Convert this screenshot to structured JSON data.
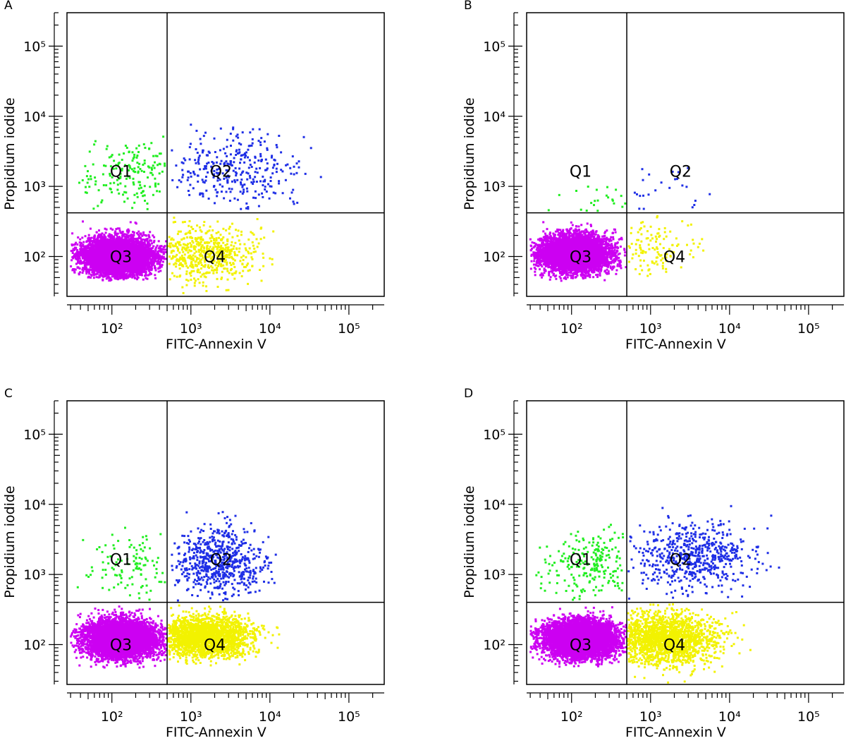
{
  "chart_data": [
    {
      "type": "scatter",
      "panel": "A",
      "xlabel": "FITC-Annexin V",
      "ylabel": "Propidium iodide",
      "x_scale": "log",
      "y_scale": "log",
      "xlim": [
        27,
        280000
      ],
      "ylim": [
        27,
        300000
      ],
      "x_ticks": [
        100,
        1000,
        10000,
        100000
      ],
      "y_ticks": [
        100,
        1000,
        10000,
        100000
      ],
      "gate": {
        "x": 500,
        "y": 420
      },
      "quadrant_labels": [
        "Q1",
        "Q2",
        "Q3",
        "Q4"
      ],
      "series": [
        {
          "name": "Q1",
          "color": "#22ee22",
          "count": 170,
          "x_center": 160,
          "y_center": 1500,
          "x_spread": 0.3,
          "y_spread": 0.25,
          "xmin": 35,
          "xmax": 480,
          "ymin": 440,
          "ymax": 7000
        },
        {
          "name": "Q2",
          "color": "#1f2fe6",
          "count": 330,
          "x_center": 3500,
          "y_center": 1700,
          "x_spread": 0.4,
          "y_spread": 0.25,
          "xmin": 520,
          "xmax": 45000,
          "ymin": 440,
          "ymax": 8000
        },
        {
          "name": "Q3",
          "color": "#cc00f2",
          "count": 6000,
          "x_center": 120,
          "y_center": 100,
          "x_spread": 0.22,
          "y_spread": 0.13,
          "xmin": 30,
          "xmax": 490,
          "ymin": 45,
          "ymax": 400
        },
        {
          "name": "Q4",
          "color": "#f2f200",
          "count": 550,
          "x_center": 1400,
          "y_center": 110,
          "x_spread": 0.35,
          "y_spread": 0.2,
          "xmin": 520,
          "xmax": 20000,
          "ymin": 30,
          "ymax": 400
        }
      ]
    },
    {
      "type": "scatter",
      "panel": "B",
      "xlabel": "FITC-Annexin V",
      "ylabel": "Propidium iodide",
      "x_scale": "log",
      "y_scale": "log",
      "xlim": [
        27,
        280000
      ],
      "ylim": [
        27,
        300000
      ],
      "x_ticks": [
        100,
        1000,
        10000,
        100000
      ],
      "y_ticks": [
        100,
        1000,
        10000,
        100000
      ],
      "gate": {
        "x": 500,
        "y": 420
      },
      "quadrant_labels": [
        "Q1",
        "Q2",
        "Q3",
        "Q4"
      ],
      "series": [
        {
          "name": "Q1",
          "color": "#22ee22",
          "count": 22,
          "x_center": 300,
          "y_center": 560,
          "x_spread": 0.25,
          "y_spread": 0.12,
          "xmin": 35,
          "xmax": 480,
          "ymin": 440,
          "ymax": 1500
        },
        {
          "name": "Q2",
          "color": "#1f2fe6",
          "count": 24,
          "x_center": 1500,
          "y_center": 800,
          "x_spread": 0.3,
          "y_spread": 0.25,
          "xmin": 520,
          "xmax": 7000,
          "ymin": 440,
          "ymax": 3500
        },
        {
          "name": "Q3",
          "color": "#cc00f2",
          "count": 5500,
          "x_center": 110,
          "y_center": 110,
          "x_spread": 0.22,
          "y_spread": 0.13,
          "xmin": 30,
          "xmax": 490,
          "ymin": 45,
          "ymax": 400
        },
        {
          "name": "Q4",
          "color": "#f2f200",
          "count": 120,
          "x_center": 1000,
          "y_center": 140,
          "x_spread": 0.3,
          "y_spread": 0.2,
          "xmin": 520,
          "xmax": 5000,
          "ymin": 35,
          "ymax": 400
        }
      ]
    },
    {
      "type": "scatter",
      "panel": "C",
      "xlabel": "FITC-Annexin V",
      "ylabel": "Propidium iodide",
      "x_scale": "log",
      "y_scale": "log",
      "xlim": [
        27,
        280000
      ],
      "ylim": [
        27,
        300000
      ],
      "x_ticks": [
        100,
        1000,
        10000,
        100000
      ],
      "y_ticks": [
        100,
        1000,
        10000,
        100000
      ],
      "gate": {
        "x": 500,
        "y": 400
      },
      "quadrant_labels": [
        "Q1",
        "Q2",
        "Q3",
        "Q4"
      ],
      "series": [
        {
          "name": "Q1",
          "color": "#22ee22",
          "count": 110,
          "x_center": 180,
          "y_center": 1200,
          "x_spread": 0.3,
          "y_spread": 0.25,
          "xmin": 35,
          "xmax": 480,
          "ymin": 420,
          "ymax": 5000
        },
        {
          "name": "Q2",
          "color": "#1f2fe6",
          "count": 650,
          "x_center": 2300,
          "y_center": 1500,
          "x_spread": 0.3,
          "y_spread": 0.25,
          "xmin": 520,
          "xmax": 15000,
          "ymin": 420,
          "ymax": 13000
        },
        {
          "name": "Q3",
          "color": "#cc00f2",
          "count": 6000,
          "x_center": 130,
          "y_center": 120,
          "x_spread": 0.22,
          "y_spread": 0.13,
          "xmin": 30,
          "xmax": 490,
          "ymin": 45,
          "ymax": 380
        },
        {
          "name": "Q4",
          "color": "#f2f200",
          "count": 2000,
          "x_center": 1500,
          "y_center": 130,
          "x_spread": 0.3,
          "y_spread": 0.15,
          "xmin": 520,
          "xmax": 20000,
          "ymin": 50,
          "ymax": 380
        }
      ]
    },
    {
      "type": "scatter",
      "panel": "D",
      "xlabel": "FITC-Annexin V",
      "ylabel": "Propidium iodide",
      "x_scale": "log",
      "y_scale": "log",
      "xlim": [
        27,
        280000
      ],
      "ylim": [
        27,
        300000
      ],
      "x_ticks": [
        100,
        1000,
        10000,
        100000
      ],
      "y_ticks": [
        100,
        1000,
        10000,
        100000
      ],
      "gate": {
        "x": 500,
        "y": 400
      },
      "quadrant_labels": [
        "Q1",
        "Q2",
        "Q3",
        "Q4"
      ],
      "series": [
        {
          "name": "Q1",
          "color": "#22ee22",
          "count": 220,
          "x_center": 180,
          "y_center": 1400,
          "x_spread": 0.3,
          "y_spread": 0.25,
          "xmin": 35,
          "xmax": 480,
          "ymin": 420,
          "ymax": 6000
        },
        {
          "name": "Q2",
          "color": "#1f2fe6",
          "count": 600,
          "x_center": 3500,
          "y_center": 1800,
          "x_spread": 0.4,
          "y_spread": 0.25,
          "xmin": 520,
          "xmax": 50000,
          "ymin": 420,
          "ymax": 10000
        },
        {
          "name": "Q3",
          "color": "#cc00f2",
          "count": 6000,
          "x_center": 130,
          "y_center": 120,
          "x_spread": 0.22,
          "y_spread": 0.13,
          "xmin": 30,
          "xmax": 490,
          "ymin": 45,
          "ymax": 380
        },
        {
          "name": "Q4",
          "color": "#f2f200",
          "count": 1700,
          "x_center": 1500,
          "y_center": 120,
          "x_spread": 0.35,
          "y_spread": 0.18,
          "xmin": 520,
          "xmax": 30000,
          "ymin": 27,
          "ymax": 380
        }
      ]
    }
  ]
}
